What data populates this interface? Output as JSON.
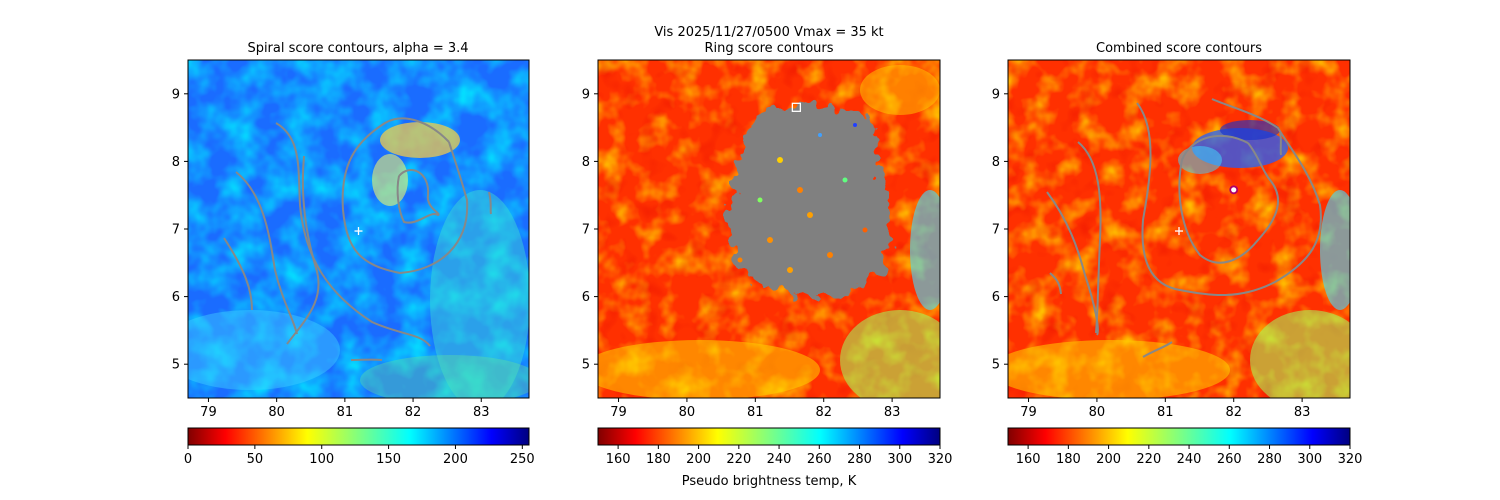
{
  "figure": {
    "suptitle": "Vis  2025/11/27/0500    Vmax = 35 kt"
  },
  "chart_data": [
    {
      "type": "heatmap",
      "title": "Spiral score contours, alpha =  3.4",
      "xlabel": "",
      "ylabel": "",
      "xlim": [
        78.7,
        83.7
      ],
      "ylim": [
        4.5,
        9.5
      ],
      "x_ticks": [
        79,
        80,
        81,
        82,
        83
      ],
      "y_ticks": [
        5,
        6,
        7,
        8,
        9
      ],
      "colormap": "jet_r",
      "field_range": [
        0,
        255
      ],
      "colorbar": {
        "ticks": [
          0,
          50,
          100,
          150,
          200,
          250
        ],
        "range": [
          0,
          255
        ],
        "label": ""
      },
      "markers": [
        {
          "shape": "plus",
          "x": 81.2,
          "y": 6.97,
          "color": "#ffffff"
        }
      ],
      "contour_color": "#888888"
    },
    {
      "type": "heatmap",
      "title": "Ring score contours",
      "xlabel": "",
      "ylabel": "",
      "xlim": [
        78.7,
        83.7
      ],
      "ylim": [
        4.5,
        9.5
      ],
      "x_ticks": [
        79,
        80,
        81,
        82,
        83
      ],
      "y_ticks": [
        5,
        6,
        7,
        8,
        9
      ],
      "colormap": "jet_r",
      "field_range": [
        150,
        320
      ],
      "colorbar": {
        "ticks": [
          160,
          180,
          200,
          220,
          240,
          260,
          280,
          300,
          320
        ],
        "range": [
          150,
          320
        ],
        "label": "Pseudo brightness temp, K"
      },
      "markers": [
        {
          "shape": "square",
          "x": 81.6,
          "y": 8.8,
          "color": "#ffffff"
        }
      ],
      "overlay": {
        "type": "masked-region",
        "color": "#808080",
        "center": [
          81.8,
          7.4
        ],
        "extent": [
          1.3,
          1.4
        ]
      }
    },
    {
      "type": "heatmap",
      "title": "Combined score contours",
      "xlabel": "",
      "ylabel": "",
      "xlim": [
        78.7,
        83.7
      ],
      "ylim": [
        4.5,
        9.5
      ],
      "x_ticks": [
        79,
        80,
        81,
        82,
        83
      ],
      "y_ticks": [
        5,
        6,
        7,
        8,
        9
      ],
      "colormap": "jet_r",
      "field_range": [
        150,
        320
      ],
      "colorbar": {
        "ticks": [
          160,
          180,
          200,
          220,
          240,
          260,
          280,
          300,
          320
        ],
        "range": [
          150,
          320
        ],
        "label": ""
      },
      "markers": [
        {
          "shape": "plus",
          "x": 81.2,
          "y": 6.97,
          "color": "#ffffff"
        },
        {
          "shape": "circle",
          "x": 82.0,
          "y": 7.58,
          "color": "#b0006a"
        }
      ],
      "contour_color": "#888888"
    }
  ]
}
